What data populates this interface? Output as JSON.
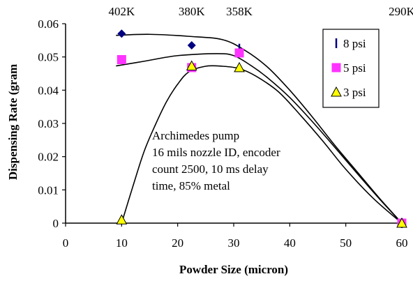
{
  "chart_data": {
    "type": "scatter",
    "title": "",
    "xlabel": "Powder Size (micron)",
    "ylabel": "Dispensing Rate (gram",
    "xlim": [
      0,
      60
    ],
    "ylim": [
      0,
      0.06
    ],
    "xticks": [
      "0",
      "10",
      "20",
      "30",
      "40",
      "50",
      "60"
    ],
    "yticks": [
      "0",
      "0.01",
      "0.02",
      "0.03",
      "0.04",
      "0.05",
      "0.06"
    ],
    "top_axis_labels": [
      {
        "x": 10,
        "label": "402K"
      },
      {
        "x": 22.5,
        "label": "380K"
      },
      {
        "x": 31,
        "label": "358K"
      },
      {
        "x": 60,
        "label": "290K"
      }
    ],
    "grid": false,
    "legend_position": "top-right",
    "annotation": [
      "Archimedes pump",
      "16 mils nozzle ID, encoder",
      "count 2500, 10 ms delay",
      "time, 85% metal"
    ],
    "series": [
      {
        "name": "8 psi",
        "marker": "vertical-dash",
        "color": "#000080",
        "points": [
          [
            10,
            0.057
          ],
          [
            22.5,
            0.0535
          ],
          [
            31,
            0.0525
          ],
          [
            60,
            0
          ]
        ],
        "trend": [
          [
            9,
            0.0565
          ],
          [
            15,
            0.0568
          ],
          [
            22,
            0.0562
          ],
          [
            28,
            0.0552
          ],
          [
            32,
            0.052
          ],
          [
            36,
            0.047
          ],
          [
            40,
            0.04
          ],
          [
            44,
            0.032
          ],
          [
            48,
            0.0235
          ],
          [
            52,
            0.0155
          ],
          [
            56,
            0.0075
          ],
          [
            60,
            0.0
          ]
        ]
      },
      {
        "name": "5 psi",
        "marker": "square",
        "color": "#ff33ff",
        "points": [
          [
            10,
            0.0492
          ],
          [
            22.5,
            0.0468
          ],
          [
            31,
            0.0512
          ],
          [
            60,
            0
          ]
        ],
        "trend": [
          [
            9,
            0.0473
          ],
          [
            14,
            0.0487
          ],
          [
            20,
            0.0504
          ],
          [
            27,
            0.051
          ],
          [
            30,
            0.0504
          ],
          [
            33,
            0.0475
          ],
          [
            36,
            0.0438
          ],
          [
            40,
            0.0378
          ],
          [
            44,
            0.0306
          ],
          [
            48,
            0.0229
          ],
          [
            52,
            0.015
          ],
          [
            56,
            0.0073
          ],
          [
            60,
            0.0
          ]
        ]
      },
      {
        "name": "3 psi",
        "marker": "triangle",
        "color": "#ffff00",
        "points": [
          [
            10,
            0.001
          ],
          [
            22.5,
            0.0473
          ],
          [
            31,
            0.0468
          ],
          [
            60,
            0
          ]
        ],
        "trend": [
          [
            10,
            0.0
          ],
          [
            12,
            0.011
          ],
          [
            14,
            0.0215
          ],
          [
            16,
            0.0295
          ],
          [
            18,
            0.0365
          ],
          [
            20,
            0.0418
          ],
          [
            22,
            0.0455
          ],
          [
            25,
            0.0472
          ],
          [
            28,
            0.0472
          ],
          [
            31,
            0.0465
          ],
          [
            34,
            0.0442
          ],
          [
            38,
            0.0395
          ],
          [
            42,
            0.0323
          ],
          [
            46,
            0.0245
          ],
          [
            50,
            0.0162
          ],
          [
            55,
            0.0073
          ],
          [
            60,
            0.0
          ]
        ]
      }
    ]
  }
}
